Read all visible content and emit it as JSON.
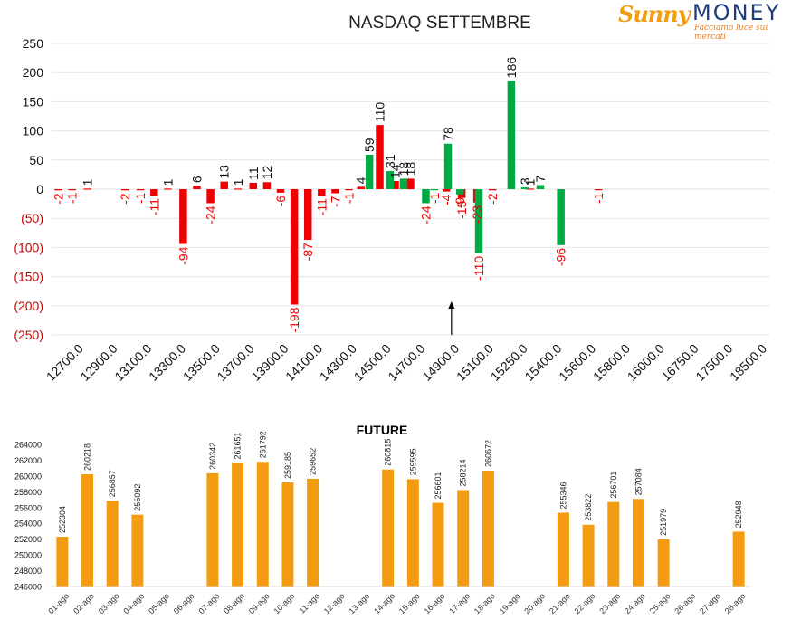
{
  "colors": {
    "negative": "#ee0000",
    "positive": "#00aa44",
    "future": "#f39c12",
    "axis_neg": "#cc0000"
  },
  "logo": {
    "brand_left": "Sunny",
    "brand_right": "MONEY",
    "tagline": "Facciamo luce sui mercati"
  },
  "chart_data": [
    {
      "type": "bar",
      "title": "NASDAQ SETTEMBRE",
      "categories": [
        "12700.0",
        "12900.0",
        "13100.0",
        "13300.0",
        "13500.0",
        "13700.0",
        "13900.0",
        "14100.0",
        "14300.0",
        "14500.0",
        "14700.0",
        "14900.0",
        "15100.0",
        "15250.0",
        "15400.0",
        "15600.0",
        "15800.0",
        "16000.0",
        "16750.0",
        "17500.0",
        "18500.0"
      ],
      "ylim": [
        -250,
        250
      ],
      "yticks": [
        250,
        200,
        150,
        100,
        50,
        0,
        -50,
        -100,
        -150,
        -200,
        -250
      ],
      "ytick_labels": [
        "250",
        "200",
        "150",
        "100",
        "50",
        "0",
        "(50)",
        "(100)",
        "(150)",
        "(200)",
        "(250)"
      ],
      "grid": true,
      "series": [
        {
          "color_key": "negative",
          "points": [
            {
              "x": 0.4,
              "v": -2
            },
            {
              "x": 1.2,
              "v": -1
            },
            {
              "x": 2.1,
              "v": 1
            },
            {
              "x": 4.3,
              "v": -2
            },
            {
              "x": 5.2,
              "v": -1
            },
            {
              "x": 6.0,
              "v": -11
            },
            {
              "x": 6.8,
              "v": 1
            },
            {
              "x": 7.7,
              "v": -94
            },
            {
              "x": 8.5,
              "v": 6
            },
            {
              "x": 9.3,
              "v": -24
            },
            {
              "x": 10.1,
              "v": 13
            },
            {
              "x": 10.9,
              "v": 1
            },
            {
              "x": 11.8,
              "v": 11
            },
            {
              "x": 12.6,
              "v": 12
            },
            {
              "x": 13.4,
              "v": -6
            },
            {
              "x": 14.2,
              "v": -198
            },
            {
              "x": 15.0,
              "v": -87
            },
            {
              "x": 15.8,
              "v": -11
            },
            {
              "x": 16.6,
              "v": -7
            },
            {
              "x": 17.4,
              "v": -1
            },
            {
              "x": 18.1,
              "v": 4
            },
            {
              "x": 19.2,
              "v": 110
            },
            {
              "x": 20.1,
              "v": 14
            },
            {
              "x": 21.0,
              "v": 18
            },
            {
              "x": 23.1,
              "v": -4
            },
            {
              "x": 24.0,
              "v": -15
            },
            {
              "x": 24.9,
              "v": -23
            },
            {
              "x": 25.8,
              "v": -2
            },
            {
              "x": 28.0,
              "v": 1
            },
            {
              "x": 32.0,
              "v": -1
            }
          ]
        },
        {
          "color_key": "positive",
          "points": [
            {
              "x": 18.6,
              "v": 59
            },
            {
              "x": 19.8,
              "v": 31
            },
            {
              "x": 20.6,
              "v": 18
            },
            {
              "x": 21.9,
              "v": -24
            },
            {
              "x": 22.4,
              "v": -1
            },
            {
              "x": 23.2,
              "v": 78
            },
            {
              "x": 23.9,
              "v": -9
            },
            {
              "x": 25.0,
              "v": -110
            },
            {
              "x": 26.9,
              "v": 186
            },
            {
              "x": 27.7,
              "v": 3
            },
            {
              "x": 28.6,
              "v": 7
            },
            {
              "x": 29.8,
              "v": -96
            }
          ]
        }
      ],
      "marker": {
        "type": "up-arrow",
        "at_category": "14900.0"
      }
    },
    {
      "type": "bar",
      "title": "FUTURE",
      "categories": [
        "01-ago",
        "02-ago",
        "03-ago",
        "04-ago",
        "05-ago",
        "06-ago",
        "07-ago",
        "08-ago",
        "09-ago",
        "10-ago",
        "11-ago",
        "12-ago",
        "13-ago",
        "14-ago",
        "15-ago",
        "16-ago",
        "17-ago",
        "18-ago",
        "19-ago",
        "20-ago",
        "21-ago",
        "22-ago",
        "23-ago",
        "24-ago",
        "25-ago",
        "26-ago",
        "27-ago",
        "28-ago"
      ],
      "values": [
        252304,
        260218,
        256857,
        255092,
        null,
        null,
        260342,
        261651,
        261792,
        259185,
        259652,
        null,
        null,
        260815,
        259595,
        256601,
        258214,
        260672,
        null,
        null,
        255346,
        253822,
        256701,
        257084,
        251979,
        null,
        null,
        252948
      ],
      "ylim": [
        246000,
        264000
      ],
      "yticks": [
        264000,
        262000,
        260000,
        258000,
        256000,
        254000,
        252000,
        250000,
        248000,
        246000
      ],
      "grid": false
    }
  ]
}
